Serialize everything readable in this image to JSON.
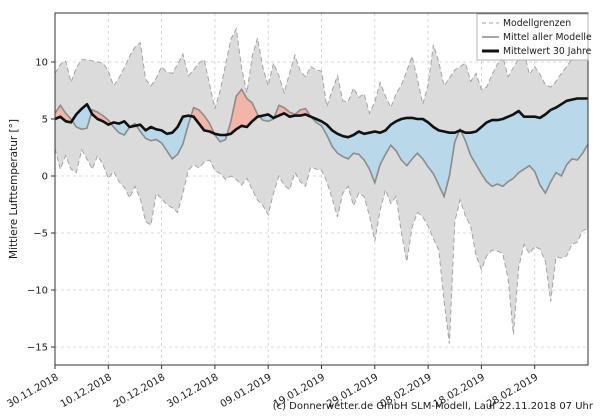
{
  "figure": {
    "caption": "(c) Donnerwetter.de GmbH SLM-Modell, Lauf 22.11.2018 07 Uhr"
  },
  "chart_data": {
    "type": "line",
    "title": "",
    "xlabel": "",
    "ylabel": "Mittlere Lufttemperatur [°]",
    "grid": true,
    "x_axis": "daily values, day 0 = 30.11.2018, day 100 = end of plot",
    "x_step_days": 1,
    "xlim_days": [
      0,
      100
    ],
    "ylim": [
      -16.6,
      14.3
    ],
    "x_ticks_days": [
      0,
      10,
      20,
      30,
      40,
      50,
      60,
      70,
      80,
      90
    ],
    "x_tick_labels": [
      "30.11.2018",
      "10.12.2018",
      "20.12.2018",
      "30.12.2018",
      "09.01.2019",
      "19.01.2019",
      "29.01.2019",
      "08.02.2019",
      "18.02.2019",
      "28.02.2019"
    ],
    "y_ticks": [
      10,
      5,
      0,
      -5,
      -10,
      -15
    ],
    "y_tick_labels": [
      "10",
      "5",
      "0",
      "−5",
      "−10",
      "−15"
    ],
    "legend": {
      "position": "upper right",
      "entries": [
        "Modellgrenzen",
        "Mittel aller Modelle",
        "Mittelwert 30 Jahre"
      ]
    },
    "series": [
      {
        "name": "Modellgrenzen (oberer Rand)",
        "role": "band_max",
        "style": "dashed-gray",
        "values": [
          9.0,
          9.8,
          10.1,
          8.2,
          9.5,
          10.2,
          10.2,
          10.1,
          10.0,
          9.9,
          9.2,
          7.9,
          8.6,
          9.5,
          10.5,
          11.3,
          11.7,
          8.5,
          7.9,
          8.6,
          9.6,
          9.1,
          9.0,
          9.8,
          10.7,
          8.8,
          9.3,
          9.9,
          10.2,
          8.0,
          5.9,
          7.5,
          9.8,
          12.0,
          12.9,
          9.5,
          7.3,
          10.5,
          12.1,
          9.5,
          7.9,
          9.9,
          8.8,
          7.3,
          9.0,
          10.6,
          9.2,
          8.7,
          9.6,
          9.3,
          9.2,
          6.1,
          7.5,
          8.8,
          6.6,
          6.5,
          7.7,
          6.9,
          7.2,
          5.5,
          6.5,
          8.2,
          7.0,
          6.0,
          7.2,
          8.0,
          9.2,
          10.5,
          8.5,
          6.3,
          8.0,
          11.5,
          10.0,
          7.9,
          8.6,
          9.3,
          9.6,
          9.9,
          8.3,
          9.0,
          7.6,
          7.8,
          8.9,
          9.8,
          10.5,
          8.7,
          9.5,
          10.3,
          10.9,
          8.9,
          9.6,
          8.9,
          8.0,
          7.8,
          8.3,
          9.0,
          9.6,
          10.3,
          11.0,
          11.2,
          11.3
        ]
      },
      {
        "name": "Modellgrenzen (unterer Rand)",
        "role": "band_min",
        "style": "dashed-gray",
        "values": [
          2.4,
          0.6,
          1.8,
          0.6,
          0.3,
          2.3,
          1.5,
          0.6,
          1.8,
          1.0,
          -0.2,
          0.4,
          -0.5,
          -1.0,
          -1.9,
          -0.9,
          -2.0,
          -4.0,
          -4.3,
          -1.5,
          -2.0,
          -2.5,
          -2.8,
          -3.2,
          -1.5,
          0.5,
          1.0,
          0.7,
          1.2,
          1.4,
          0.5,
          0.2,
          -0.3,
          0.0,
          -0.3,
          -0.8,
          -0.2,
          -1.2,
          -2.1,
          -2.6,
          -3.4,
          -1.5,
          0.0,
          -0.8,
          -1.2,
          0.3,
          -0.5,
          -0.9,
          0.8,
          0.6,
          0.5,
          -0.5,
          -2.0,
          -3.6,
          -1.5,
          -0.9,
          -2.6,
          -1.5,
          -1.8,
          -3.5,
          -5.7,
          -3.0,
          -1.2,
          -2.4,
          -1.8,
          -5.0,
          -7.5,
          -4.5,
          -3.2,
          -3.6,
          -4.4,
          -5.5,
          -6.5,
          -11.0,
          -14.7,
          -4.0,
          -2.1,
          -3.5,
          -4.4,
          -7.0,
          -8.2,
          -7.0,
          -6.5,
          -6.6,
          -6.8,
          -9.0,
          -13.9,
          -8.0,
          -6.0,
          -6.8,
          -6.2,
          -6.4,
          -7.5,
          -11.0,
          -7.1,
          -7.2,
          -7.0,
          -6.0,
          -5.8,
          -4.8,
          -4.6
        ]
      },
      {
        "name": "Mittel aller Modelle",
        "role": "model_mean",
        "style": "solid-gray",
        "values": [
          5.5,
          6.2,
          5.5,
          5.0,
          4.3,
          4.1,
          4.2,
          5.8,
          5.6,
          5.3,
          4.9,
          4.3,
          3.8,
          3.6,
          4.3,
          4.6,
          3.9,
          3.3,
          3.1,
          3.2,
          2.9,
          2.2,
          1.5,
          1.9,
          2.8,
          4.5,
          6.0,
          5.8,
          5.3,
          4.6,
          3.6,
          3.0,
          3.2,
          4.8,
          7.0,
          7.6,
          6.8,
          6.4,
          5.4,
          4.9,
          4.8,
          5.0,
          6.2,
          6.0,
          5.6,
          5.4,
          5.8,
          5.9,
          5.2,
          4.7,
          4.4,
          3.6,
          2.6,
          2.0,
          1.7,
          1.5,
          2.0,
          1.9,
          1.4,
          0.6,
          -0.6,
          1.0,
          1.9,
          2.7,
          2.2,
          1.4,
          0.9,
          1.5,
          2.0,
          1.5,
          0.8,
          0.2,
          -0.8,
          -1.8,
          0.0,
          3.0,
          4.1,
          3.1,
          1.8,
          1.0,
          0.2,
          -0.5,
          -0.9,
          -0.7,
          -0.9,
          -0.5,
          -0.2,
          0.3,
          0.6,
          0.9,
          0.4,
          -0.8,
          -1.5,
          -0.5,
          0.3,
          0.0,
          1.0,
          1.5,
          1.4,
          2.0,
          2.8
        ]
      },
      {
        "name": "Mittelwert 30 Jahre",
        "role": "climate_mean",
        "style": "thick-black",
        "values": [
          5.0,
          5.2,
          4.8,
          4.7,
          5.4,
          5.9,
          6.3,
          5.4,
          5.0,
          4.8,
          4.5,
          4.7,
          4.6,
          4.8,
          4.3,
          4.4,
          4.5,
          4.0,
          4.3,
          4.1,
          4.0,
          3.7,
          3.8,
          4.3,
          5.2,
          5.3,
          5.2,
          4.6,
          4.0,
          3.9,
          3.7,
          3.6,
          3.6,
          3.7,
          4.1,
          4.4,
          4.3,
          4.8,
          5.2,
          5.3,
          5.4,
          5.1,
          5.3,
          5.5,
          5.2,
          5.3,
          5.3,
          5.4,
          5.2,
          5.0,
          4.8,
          4.5,
          4.0,
          3.7,
          3.5,
          3.4,
          3.6,
          3.9,
          3.7,
          3.8,
          3.9,
          3.8,
          4.0,
          4.5,
          4.8,
          5.0,
          5.1,
          5.1,
          5.0,
          5.0,
          4.7,
          4.3,
          4.0,
          3.9,
          3.8,
          3.8,
          4.0,
          3.8,
          3.8,
          3.9,
          4.3,
          4.7,
          4.9,
          4.9,
          5.0,
          5.2,
          5.4,
          5.7,
          5.2,
          5.2,
          5.2,
          5.1,
          5.4,
          5.8,
          6.0,
          6.3,
          6.6,
          6.7,
          6.8,
          6.8,
          6.8
        ]
      }
    ],
    "fills": {
      "band": "#dbdbdb",
      "above_climate": "#f2b5a7",
      "below_climate": "#b9d8ea"
    },
    "colors": {
      "band_edge": "#a3a3a3",
      "model_mean": "#8c8c8c",
      "climate_mean": "#111111",
      "grid": "#cdcdcd",
      "spine": "#333333",
      "text": "#1a1a1a",
      "legend_border": "#b3b3b3",
      "legend_bg": "#ffffff"
    }
  }
}
